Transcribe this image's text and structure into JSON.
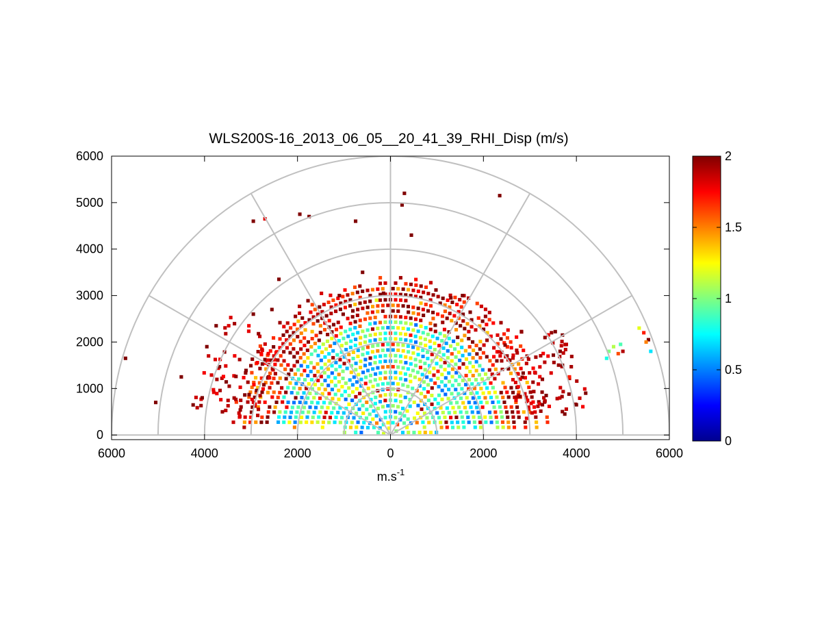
{
  "chart_data": {
    "type": "heatmap",
    "subtype": "polar-sector-rhi",
    "title": "WLS200S-16_2013_06_05__20_41_39_RHI_Disp (m/s)",
    "xlabel": "m.s",
    "xlabel_superscript": "-1",
    "ylabel": "",
    "xlim": [
      -6000,
      6000
    ],
    "ylim": [
      -100,
      6000
    ],
    "x_ticks": [
      -6000,
      -4000,
      -2000,
      0,
      2000,
      4000,
      6000
    ],
    "x_tick_labels": [
      "6000",
      "4000",
      "2000",
      "0",
      "2000",
      "4000",
      "6000"
    ],
    "y_ticks": [
      0,
      1000,
      2000,
      3000,
      4000,
      5000,
      6000
    ],
    "y_tick_labels": [
      "0",
      "1000",
      "2000",
      "3000",
      "4000",
      "5000",
      "6000"
    ],
    "polar_grid": {
      "range_rings": [
        1000,
        2000,
        3000,
        4000,
        5000,
        6000
      ],
      "radial_spokes_deg": [
        0,
        30,
        60,
        90,
        120,
        150,
        180
      ]
    },
    "colorbar": {
      "range": [
        0,
        2
      ],
      "colormap": "jet",
      "ticks": [
        0,
        0.5,
        1,
        1.5,
        2
      ],
      "tick_labels": [
        "0",
        "0.5",
        "1",
        "1.5",
        "2"
      ]
    },
    "description_zones": {
      "inner_radius_m": 2500,
      "inner_dominant_value": 0.9,
      "mid_band_radius_m": [
        2500,
        3200
      ],
      "mid_band_dominant_value": 1.6,
      "outer_dominant_value": 2.0
    },
    "isolated_cells": [
      {
        "x": -5700,
        "y": 1650,
        "v": 2
      },
      {
        "x": -5050,
        "y": 700,
        "v": 2
      },
      {
        "x": -4500,
        "y": 1250,
        "v": 2
      },
      {
        "x": -4050,
        "y": 800,
        "v": 2
      },
      {
        "x": -3750,
        "y": 2350,
        "v": 2
      },
      {
        "x": -3950,
        "y": 1900,
        "v": 2
      },
      {
        "x": -2950,
        "y": 4600,
        "v": 2
      },
      {
        "x": -2700,
        "y": 4650,
        "v": 1.8
      },
      {
        "x": -1950,
        "y": 4750,
        "v": 2
      },
      {
        "x": -1750,
        "y": 4700,
        "v": 2
      },
      {
        "x": -750,
        "y": 4600,
        "v": 2
      },
      {
        "x": 300,
        "y": 5200,
        "v": 2
      },
      {
        "x": 250,
        "y": 4950,
        "v": 2
      },
      {
        "x": 450,
        "y": 4300,
        "v": 2
      },
      {
        "x": 2350,
        "y": 5150,
        "v": 2
      },
      {
        "x": -2400,
        "y": 3350,
        "v": 2
      },
      {
        "x": -600,
        "y": 3500,
        "v": 2
      },
      {
        "x": -1100,
        "y": 3000,
        "v": 2
      },
      {
        "x": -2950,
        "y": 2600,
        "v": 2
      },
      {
        "x": -2550,
        "y": 2700,
        "v": 2
      },
      {
        "x": 1300,
        "y": 2950,
        "v": 2
      },
      {
        "x": 1550,
        "y": 3000,
        "v": 2
      },
      {
        "x": 3700,
        "y": 1500,
        "v": 2
      },
      {
        "x": 3850,
        "y": 1250,
        "v": 1.7
      },
      {
        "x": 4200,
        "y": 900,
        "v": 2
      },
      {
        "x": 4000,
        "y": 650,
        "v": 2
      },
      {
        "x": 3750,
        "y": 450,
        "v": 2
      },
      {
        "x": 3350,
        "y": 850,
        "v": 2
      },
      {
        "x": 3650,
        "y": 1800,
        "v": 2
      },
      {
        "x": 3700,
        "y": 2150,
        "v": 2
      },
      {
        "x": 4700,
        "y": 1800,
        "v": 1.0
      },
      {
        "x": 4800,
        "y": 1900,
        "v": 1.1
      },
      {
        "x": 4950,
        "y": 1950,
        "v": 0.9
      },
      {
        "x": 4900,
        "y": 1750,
        "v": 1.6
      },
      {
        "x": 5000,
        "y": 1800,
        "v": 1.9
      },
      {
        "x": 4650,
        "y": 1650,
        "v": 0.8
      },
      {
        "x": 5350,
        "y": 2300,
        "v": 1.2
      },
      {
        "x": 5450,
        "y": 2200,
        "v": 1.7
      },
      {
        "x": 5550,
        "y": 2050,
        "v": 2.0
      },
      {
        "x": 5600,
        "y": 1800,
        "v": 0.7
      },
      {
        "x": 5500,
        "y": 2000,
        "v": 1.5
      },
      {
        "x": -300,
        "y": 2900,
        "v": 1.2
      },
      {
        "x": -150,
        "y": 3050,
        "v": 2
      }
    ]
  }
}
